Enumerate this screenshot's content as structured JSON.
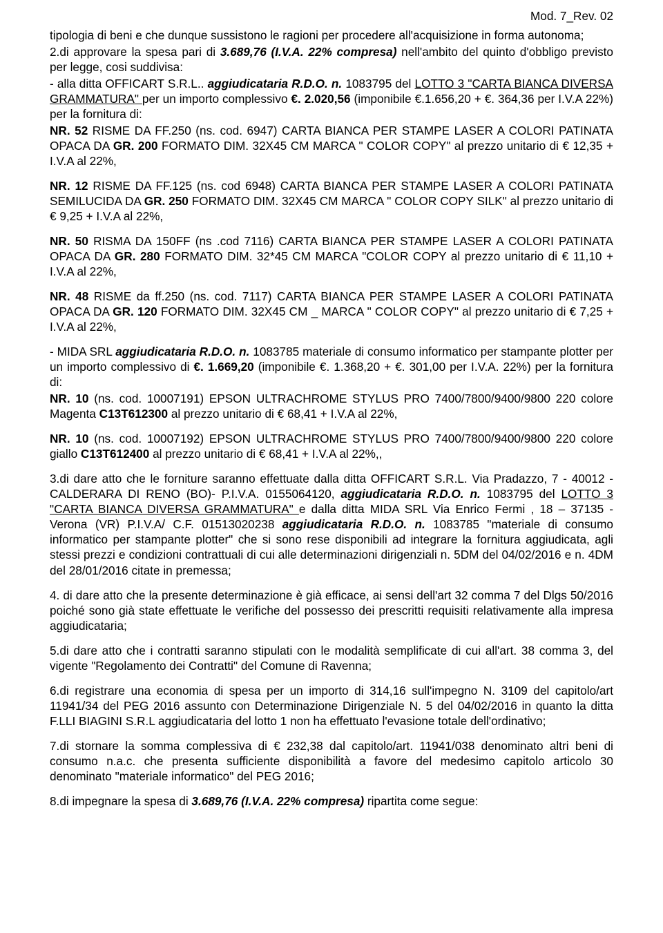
{
  "header": "Mod. 7_Rev. 02",
  "para1": "tipologia di beni e che dunque sussistono le ragioni per procedere all'acquisizione  in forma autonoma;",
  "para2_a": "2.di approvare la spesa pari di ",
  "para2_b": "3.689,76 (I.V.A. 22% compresa)",
  "para2_c": " nell'ambito del quinto d'obbligo previsto per legge, cosi suddivisa:",
  "seg1_a": "- alla ditta  OFFICART S.R.L.. ",
  "seg1_b": "aggiudicataria R.D.O. n.",
  "seg1_c": " 1083795 del ",
  "seg1_d": " LOTTO 3 \"CARTA BIANCA DIVERSA GRAMMATURA\" ",
  "seg1_e": "per un importo complessivo ",
  "seg1_f": "€. 2.020,56",
  "seg1_g": " (imponibile €.1.656,20 + €. 364,36 per I.V.A 22%) per la fornitura di:",
  "item1_a": "NR. 52",
  "item1_b": " RISME DA  FF.250  (ns. cod. 6947) CARTA  BIANCA  PER STAMPE LASER A COLORI PATINATA OPACA DA ",
  "item1_c": "GR. 200",
  "item1_d": " FORMATO DIM. 32X45 CM MARCA \" COLOR COPY\"  al prezzo unitario di € 12,35 + I.V.A al 22%,",
  "item2_a": "NR. 12",
  "item2_b": " RISME  DA  FF.125 (ns. cod 6948) CARTA  BIANCA  PER STAMPE LASER A COLORI PATINATA SEMILUCIDA  DA ",
  "item2_c": "GR. 250",
  "item2_d": " FORMATO DIM. 32X45 CM   MARCA \" COLOR COPY SILK\"  al prezzo unitario di € 9,25 + I.V.A al 22%,",
  "item3_a": "NR. 50",
  "item3_b": " RISMA DA 150FF (ns .cod 7116) CARTA BIANCA PER STAMPE LASER A COLORI PATINATA OPACA DA ",
  "item3_c": "GR. 280 ",
  "item3_d": "FORMATO DIM. 32*45 CM MARCA \"COLOR COPY al prezzo unitario di € 11,10 + I.V.A al 22%,",
  "item4_a": "NR. 48",
  "item4_b": " RISME  da  ff.250 (ns. cod. 7117) CARTA  BIANCA  PER STAMPE LASER A COLORI PATINATA OPACA DA ",
  "item4_c": "GR. 120",
  "item4_d": " FORMATO DIM. 32X45 CM _ MARCA \" COLOR COPY\" al prezzo unitario di € 7,25 + I.V.A al 22%,",
  "mida_a": "- MIDA SRL  ",
  "mida_b": "aggiudicataria R.D.O. n.",
  "mida_c": " 1083785  materiale di consumo  informatico per stampante plotter per un importo complessivo di  ",
  "mida_d": "€. 1.669,20",
  "mida_e": " (imponibile €. 1.368,20 + €. 301,00 per I.V.A. 22%) per la fornitura di:",
  "epson1_a": "NR. 10",
  "epson1_b": " (ns. cod. 10007191)  EPSON ULTRACHROME STYLUS PRO 7400/7800/9400/9800 220 colore Magenta ",
  "epson1_c": "C13T612300",
  "epson1_d": " al prezzo unitario di € 68,41 + I.V.A al 22%,",
  "epson2_a": "NR. 10",
  "epson2_b": " (ns. cod. 10007192)  EPSON ULTRACHROME STYLUS PRO 7400/7800/9400/9800 220 colore giallo ",
  "epson2_c": "C13T612400",
  "epson2_d": "   al prezzo unitario di € 68,41 + I.V.A al 22%,,",
  "p3_a": "3.di dare atto  che le forniture saranno effettuate dalla ditta    OFFICART S.R.L. Via  Pradazzo, 7 - 40012 - CALDERARA DI RENO (BO)- P.I.V.A. 0155064120, ",
  "p3_b": "aggiudicataria R.D.O. n.",
  "p3_c": " 1083795 del ",
  "p3_d": " LOTTO 3 \"CARTA BIANCA DIVERSA GRAMMATURA\" ",
  "p3_e": " e dalla ditta MIDA SRL Via Enrico Fermi , 18 – 37135 -Verona (VR)      P.I.V.A/ C.F. 01513020238 ",
  "p3_f": "aggiudicataria R.D.O. n.",
  "p3_g": " 1083785 \"materiale di consumo  informatico per stampante plotter\" che si sono  rese disponibili  ad integrare la fornitura aggiudicata, agli stessi prezzi e condizioni  contrattuali di cui alle determinazioni dirigenziali n. 5DM del 04/02/2016 e n. 4DM del 28/01/2016 citate in premessa;",
  "p4": "4. di dare atto che la presente determinazione è già efficace, ai sensi dell'art 32 comma 7 del Dlgs 50/2016 poiché sono già state effettuate le verifiche del possesso dei prescritti requisiti relativamente alla impresa  aggiudicataria;",
  "p5": "5.di dare atto che i contratti saranno stipulati con le modalità semplificate di cui all'art. 38 comma 3, del vigente \"Regolamento dei Contratti\" del Comune di Ravenna;",
  "p6": "6.di registrare una economia di spesa per un importo di  314,16 sull'impegno N. 3109 del capitolo/art 11941/34 del PEG 2016 assunto con Determinazione  Dirigenziale N. 5 del 04/02/2016 in quanto la ditta F.LLI BIAGINI  S.R.L aggiudicataria del lotto 1 non ha effettuato l'evasione totale dell'ordinativo;",
  "p7": "7.di stornare la somma complessiva di € 232,38  dal capitolo/art. 11941/038 denominato  altri beni di consumo n.a.c.  che presenta sufficiente disponibilità a favore del medesimo capitolo articolo 30 denominato \"materiale informatico\" del PEG 2016;",
  "p8_a": "8.di impegnare la spesa di ",
  "p8_b": "3.689,76 (I.V.A. 22% compresa)",
  "p8_c": "   ripartita come segue:"
}
